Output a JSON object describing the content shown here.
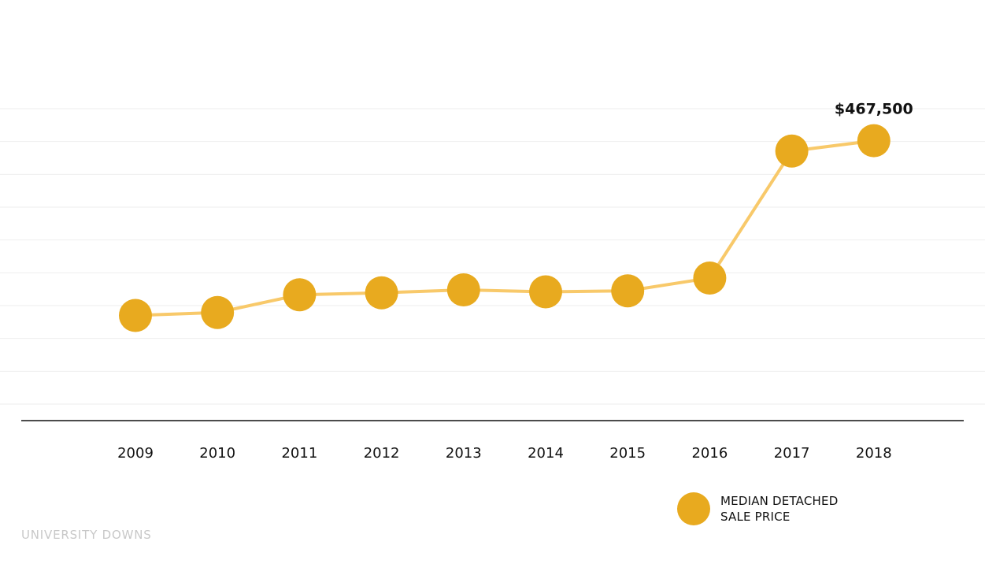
{
  "chart_data": {
    "type": "line",
    "title": "",
    "xlabel": "",
    "ylabel": "",
    "categories": [
      "2009",
      "2010",
      "2011",
      "2012",
      "2013",
      "2014",
      "2015",
      "2016",
      "2017",
      "2018"
    ],
    "series": [
      {
        "name": "MEDIAN DETACHED SALE PRICE",
        "values": [
          290000,
          293000,
          311000,
          313000,
          316000,
          314000,
          315000,
          328000,
          457000,
          467500
        ]
      }
    ],
    "data_labels": [
      {
        "category": "2018",
        "text": "$467,500"
      }
    ],
    "ylim": [
      200000,
      500000
    ],
    "grid": true,
    "legend_position": "bottom-right",
    "colors": {
      "marker": "#e8aa1f",
      "line": "#f8c96a",
      "grid": "#eeeeee",
      "axis": "#111111"
    }
  },
  "legend": {
    "line1": "MEDIAN DETACHED",
    "line2": "SALE PRICE"
  },
  "footer": {
    "neighborhood": "UNIVERSITY DOWNS"
  }
}
